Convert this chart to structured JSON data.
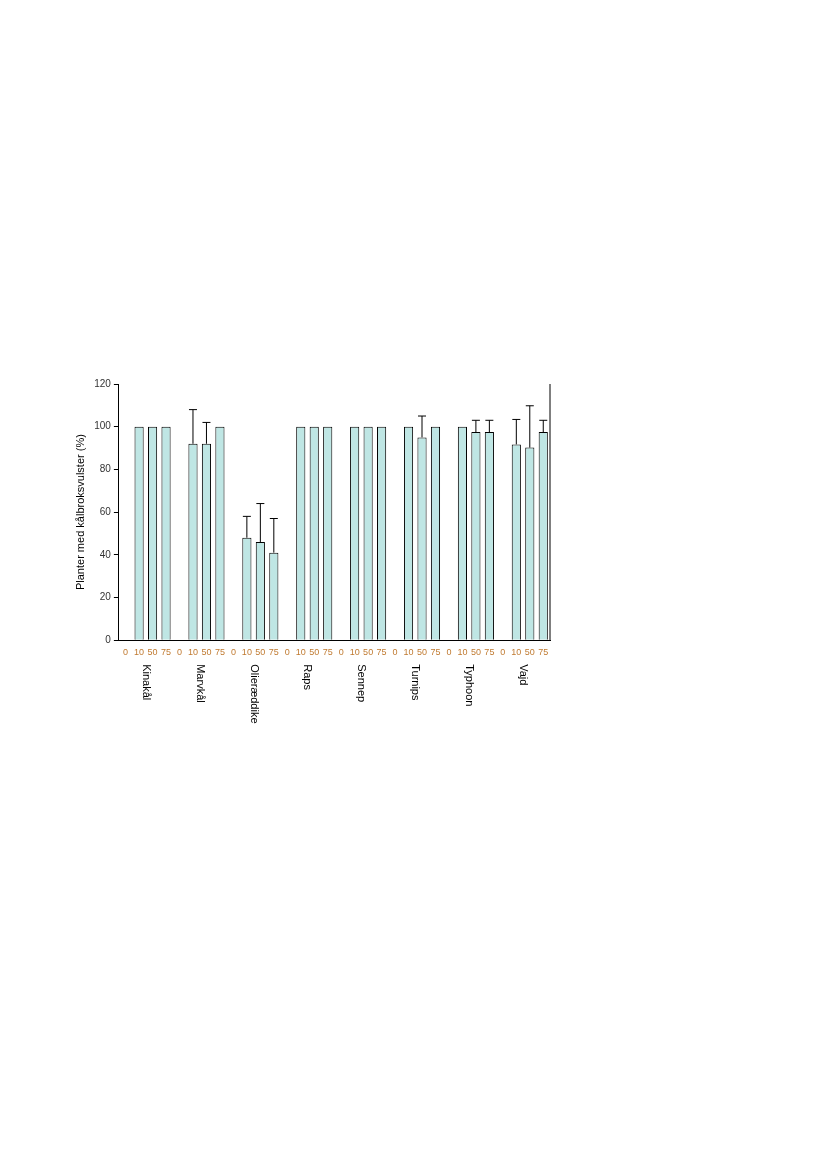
{
  "chart_data": {
    "type": "bar",
    "ylabel": "Planter med kålbroksvulster (%)",
    "categories": [
      "0",
      "10",
      "50",
      "75",
      "0",
      "10",
      "50",
      "75",
      "0",
      "10",
      "50",
      "75",
      "0",
      "10",
      "50",
      "75",
      "0",
      "10",
      "50",
      "75",
      "0",
      "10",
      "50",
      "75",
      "0",
      "10",
      "50",
      "75",
      "0",
      "10",
      "50",
      "75"
    ],
    "values": [
      0,
      100,
      100,
      100,
      0,
      92,
      92,
      100,
      0,
      48,
      46,
      41,
      0,
      100,
      100,
      100,
      0,
      100,
      100,
      100,
      0,
      100,
      95,
      100,
      0,
      100,
      97.5,
      97.5,
      0,
      91.7,
      90.2,
      97.5
    ],
    "errors": [
      null,
      null,
      null,
      null,
      null,
      [
        92,
        108
      ],
      [
        92,
        102
      ],
      null,
      null,
      [
        48,
        58
      ],
      [
        46,
        64
      ],
      [
        41,
        57
      ],
      null,
      null,
      null,
      null,
      null,
      null,
      null,
      null,
      null,
      null,
      [
        95,
        105
      ],
      null,
      null,
      null,
      [
        97.5,
        103
      ],
      [
        97.5,
        103
      ],
      null,
      [
        91.7,
        103.4
      ],
      [
        90.2,
        109.8
      ],
      [
        97.5,
        103
      ]
    ],
    "color": "#bfe6e4",
    "annotations": [
      "Kinakål",
      "Marvkål",
      "Olieræddike",
      "Raps",
      "Sennep",
      "Turnips",
      "Typhoon",
      "Vajd"
    ],
    "ylim": [
      0,
      120
    ],
    "yticks": [
      0,
      20,
      40,
      60,
      80,
      100,
      120
    ],
    "grid": false,
    "legend": false
  }
}
